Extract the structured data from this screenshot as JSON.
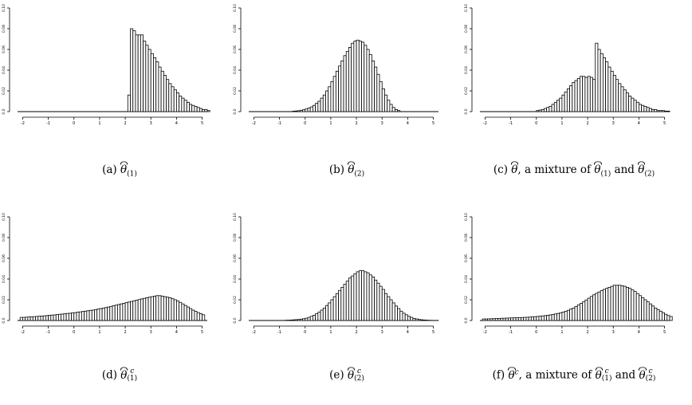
{
  "figure": {
    "captions": [
      {
        "label": "(a)",
        "sym": "θ",
        "sup": "",
        "sub": "(1)",
        "rest": ""
      },
      {
        "label": "(b)",
        "sym": "θ",
        "sup": "",
        "sub": "(2)",
        "rest": ""
      },
      {
        "label": "(c)",
        "sym": "θ",
        "sup": "",
        "sub": "",
        "rest": ", a mixture of",
        "m1": {
          "sup": "",
          "sub": "(1)"
        },
        "and": "and",
        "m2": {
          "sup": "",
          "sub": "(2)"
        }
      },
      {
        "label": "(d)",
        "sym": "θ",
        "sup": "c",
        "sub": "(1)",
        "rest": ""
      },
      {
        "label": "(e)",
        "sym": "θ",
        "sup": "c",
        "sub": "(2)",
        "rest": ""
      },
      {
        "label": "(f)",
        "sym": "θ",
        "sup": "c",
        "sub": "",
        "rest": ", a mixture of",
        "m1": {
          "sup": "c",
          "sub": "(1)"
        },
        "and": "and",
        "m2": {
          "sup": "c",
          "sub": "(2)"
        }
      }
    ]
  },
  "chart_data": [
    {
      "type": "bar",
      "panel": "a",
      "xlim": [
        -2.2,
        5.2
      ],
      "ylim": [
        0,
        0.1
      ],
      "x_ticks": [
        "-2",
        "-1",
        "0",
        "1",
        "2",
        "3",
        "4",
        "5"
      ],
      "y_ticks": [
        "0.0",
        "0.02",
        "0.04",
        "0.06",
        "0.08",
        "0.10"
      ],
      "bin_start": 2.1,
      "bin_width": 0.1,
      "values": [
        0.016,
        0.08,
        0.078,
        0.074,
        0.074,
        0.074,
        0.068,
        0.064,
        0.06,
        0.056,
        0.052,
        0.048,
        0.043,
        0.039,
        0.035,
        0.031,
        0.027,
        0.024,
        0.021,
        0.018,
        0.015,
        0.013,
        0.011,
        0.009,
        0.007,
        0.006,
        0.005,
        0.004,
        0.003,
        0.002,
        0.002,
        0.001
      ]
    },
    {
      "type": "bar",
      "panel": "b",
      "xlim": [
        -2.2,
        5.2
      ],
      "ylim": [
        0,
        0.1
      ],
      "x_ticks": [
        "-2",
        "-1",
        "0",
        "1",
        "2",
        "3",
        "4",
        "5"
      ],
      "y_ticks": [
        "0.0",
        "0.02",
        "0.04",
        "0.06",
        "0.08",
        "0.10"
      ],
      "bin_start": -0.5,
      "bin_width": 0.1,
      "values": [
        0.0004,
        0.0006,
        0.0009,
        0.0013,
        0.0018,
        0.0025,
        0.0034,
        0.0045,
        0.006,
        0.008,
        0.01,
        0.013,
        0.016,
        0.02,
        0.024,
        0.029,
        0.034,
        0.039,
        0.044,
        0.049,
        0.054,
        0.058,
        0.062,
        0.066,
        0.068,
        0.069,
        0.068,
        0.067,
        0.064,
        0.06,
        0.055,
        0.049,
        0.043,
        0.036,
        0.029,
        0.022,
        0.016,
        0.011,
        0.007,
        0.004,
        0.002,
        0.001
      ]
    },
    {
      "type": "bar",
      "panel": "c",
      "xlim": [
        -2.2,
        5.2
      ],
      "ylim": [
        0,
        0.1
      ],
      "x_ticks": [
        "-2",
        "-1",
        "0",
        "1",
        "2",
        "3",
        "4",
        "5"
      ],
      "y_ticks": [
        "0.0",
        "0.02",
        "0.04",
        "0.06",
        "0.08",
        "0.10"
      ],
      "bin_start": 0.0,
      "bin_width": 0.1,
      "values": [
        0.001,
        0.0015,
        0.002,
        0.003,
        0.004,
        0.005,
        0.007,
        0.009,
        0.011,
        0.013,
        0.016,
        0.019,
        0.022,
        0.025,
        0.028,
        0.03,
        0.032,
        0.034,
        0.034,
        0.033,
        0.034,
        0.033,
        0.031,
        0.066,
        0.06,
        0.056,
        0.052,
        0.048,
        0.043,
        0.039,
        0.035,
        0.031,
        0.027,
        0.024,
        0.021,
        0.018,
        0.015,
        0.013,
        0.011,
        0.009,
        0.007,
        0.006,
        0.005,
        0.004,
        0.003,
        0.002,
        0.002,
        0.001,
        0.001,
        0.001,
        0.0005,
        0.0005
      ]
    },
    {
      "type": "bar",
      "panel": "d",
      "xlim": [
        -2.2,
        5.2
      ],
      "ylim": [
        0,
        0.1
      ],
      "x_ticks": [
        "-2",
        "-1",
        "0",
        "1",
        "2",
        "3",
        "4",
        "5"
      ],
      "y_ticks": [
        "0.0",
        "0.02",
        "0.04",
        "0.06",
        "0.08",
        "0.10"
      ],
      "bin_start": -2.1,
      "bin_width": 0.1,
      "values": [
        0.003,
        0.003,
        0.0032,
        0.0034,
        0.0035,
        0.0037,
        0.0039,
        0.0041,
        0.0043,
        0.0045,
        0.0047,
        0.005,
        0.0052,
        0.0054,
        0.0057,
        0.006,
        0.0062,
        0.0065,
        0.0068,
        0.007,
        0.0073,
        0.0076,
        0.008,
        0.0083,
        0.0087,
        0.009,
        0.0094,
        0.0098,
        0.01,
        0.0105,
        0.011,
        0.0115,
        0.012,
        0.0125,
        0.013,
        0.0136,
        0.0142,
        0.0148,
        0.0154,
        0.016,
        0.0166,
        0.0172,
        0.0178,
        0.0184,
        0.019,
        0.0196,
        0.0202,
        0.0208,
        0.0214,
        0.022,
        0.0225,
        0.023,
        0.0235,
        0.024,
        0.024,
        0.0235,
        0.023,
        0.0225,
        0.022,
        0.021,
        0.02,
        0.0188,
        0.0175,
        0.016,
        0.0145,
        0.013,
        0.0115,
        0.01,
        0.0088,
        0.0076,
        0.0065,
        0.0055
      ]
    },
    {
      "type": "bar",
      "panel": "e",
      "xlim": [
        -2.2,
        5.2
      ],
      "ylim": [
        0,
        0.1
      ],
      "x_ticks": [
        "-2",
        "-1",
        "0",
        "1",
        "2",
        "3",
        "4",
        "5"
      ],
      "y_ticks": [
        "0.0",
        "0.02",
        "0.04",
        "0.06",
        "0.08",
        "0.10"
      ],
      "bin_start": -0.8,
      "bin_width": 0.1,
      "values": [
        0.0002,
        0.0003,
        0.0004,
        0.0006,
        0.0008,
        0.001,
        0.0013,
        0.0017,
        0.0022,
        0.003,
        0.004,
        0.005,
        0.0065,
        0.008,
        0.01,
        0.012,
        0.0145,
        0.017,
        0.02,
        0.023,
        0.026,
        0.029,
        0.032,
        0.035,
        0.038,
        0.041,
        0.043,
        0.045,
        0.047,
        0.048,
        0.048,
        0.047,
        0.046,
        0.044,
        0.042,
        0.039,
        0.036,
        0.033,
        0.03,
        0.026,
        0.023,
        0.02,
        0.017,
        0.014,
        0.0115,
        0.009,
        0.007,
        0.0055,
        0.004,
        0.003,
        0.002,
        0.0015,
        0.001,
        0.0007,
        0.0005,
        0.0003,
        0.0002,
        0.0001,
        0.0001,
        0.0001
      ]
    },
    {
      "type": "bar",
      "panel": "f",
      "xlim": [
        -2.2,
        5.2
      ],
      "ylim": [
        0,
        0.1
      ],
      "x_ticks": [
        "-2",
        "-1",
        "0",
        "1",
        "2",
        "3",
        "4",
        "5"
      ],
      "y_ticks": [
        "0.0",
        "0.02",
        "0.04",
        "0.06",
        "0.08",
        "0.10"
      ],
      "bin_start": -2.1,
      "bin_width": 0.1,
      "values": [
        0.0015,
        0.0015,
        0.0016,
        0.0017,
        0.0018,
        0.0019,
        0.002,
        0.0021,
        0.0022,
        0.0023,
        0.0024,
        0.0025,
        0.0026,
        0.0027,
        0.0028,
        0.0029,
        0.003,
        0.0031,
        0.0033,
        0.0035,
        0.0037,
        0.0039,
        0.0041,
        0.0044,
        0.0047,
        0.005,
        0.0054,
        0.0058,
        0.0063,
        0.0068,
        0.0074,
        0.0081,
        0.0089,
        0.0098,
        0.011,
        0.012,
        0.0135,
        0.015,
        0.0165,
        0.018,
        0.0198,
        0.0215,
        0.0232,
        0.0248,
        0.0262,
        0.0275,
        0.0288,
        0.03,
        0.031,
        0.032,
        0.033,
        0.034,
        0.034,
        0.034,
        0.0335,
        0.033,
        0.032,
        0.031,
        0.0295,
        0.028,
        0.026,
        0.024,
        0.022,
        0.02,
        0.018,
        0.016,
        0.014,
        0.012,
        0.0105,
        0.009,
        0.0075,
        0.006,
        0.0048,
        0.0038
      ]
    }
  ]
}
